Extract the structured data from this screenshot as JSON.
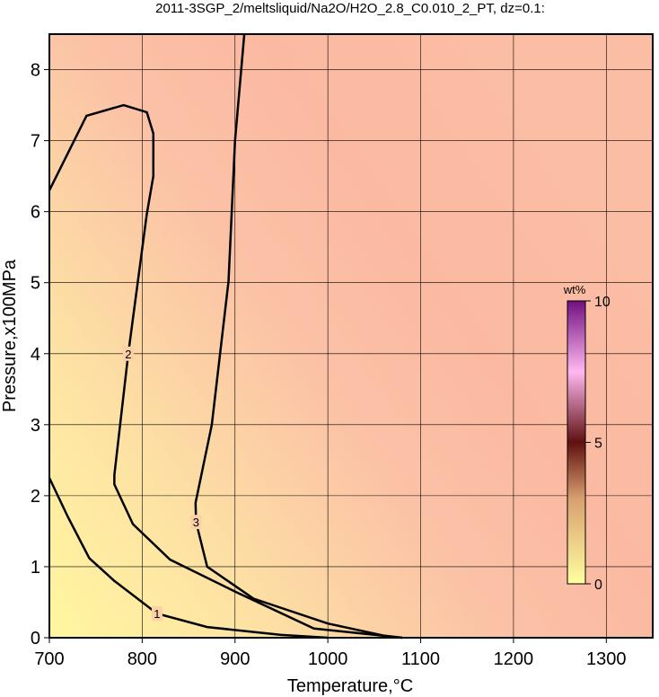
{
  "chart_data": {
    "type": "contour",
    "title": "2011-3SGP_2/meltsliquid/Na2O/H2O_2.8_C0.010_2_PT, dz=0.1:",
    "x_label": "Temperature,°C",
    "y_label": "Pressure,x100MPa",
    "xlim": [
      700,
      1350
    ],
    "ylim": [
      0,
      8.5
    ],
    "xticks": [
      700,
      800,
      900,
      1000,
      1100,
      1200,
      1300
    ],
    "yticks": [
      0,
      1,
      2,
      3,
      4,
      5,
      6,
      7,
      8
    ],
    "grid": true,
    "contours": [
      {
        "level": 1,
        "color": "#000000",
        "x": [
          700,
          720,
          743,
          770,
          816,
          870,
          950,
          1000
        ],
        "y": [
          2.25,
          1.7,
          1.12,
          0.8,
          0.34,
          0.15,
          0.04,
          0
        ]
      },
      {
        "level": 2,
        "color": "#000000",
        "x": [
          700,
          740,
          780,
          805,
          812,
          812,
          805,
          785,
          770,
          770,
          790,
          830,
          900,
          985,
          1080
        ],
        "y": [
          6.3,
          7.35,
          7.5,
          7.4,
          7.1,
          6.5,
          5.97,
          4.0,
          2.29,
          2.16,
          1.6,
          1.1,
          0.65,
          0.13,
          0
        ]
      },
      {
        "level": 3,
        "color": "#000000",
        "x": [
          910,
          900,
          893,
          875,
          857.5,
          858,
          870,
          920,
          1000,
          1060,
          1080
        ],
        "y": [
          8.5,
          7.0,
          5.02,
          3.0,
          1.9,
          1.63,
          1.0,
          0.55,
          0.2,
          0.03,
          0
        ]
      }
    ],
    "colorbar": {
      "label": "wt%",
      "lim": [
        0,
        10
      ],
      "ticks": [
        0,
        5,
        10
      ]
    }
  }
}
